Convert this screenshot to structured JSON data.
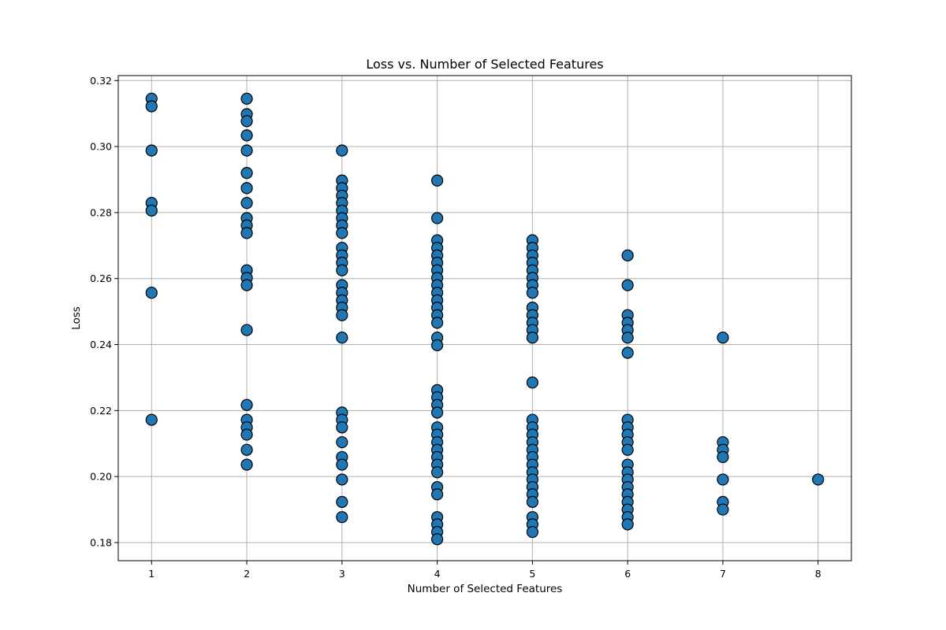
{
  "chart_data": {
    "type": "scatter",
    "title": "Loss vs. Number of Selected Features",
    "xlabel": "Number of Selected Features",
    "ylabel": "Loss",
    "xlim": [
      0.65,
      8.35
    ],
    "ylim": [
      0.1745,
      0.3215
    ],
    "xticks": [
      1,
      2,
      3,
      4,
      5,
      6,
      7,
      8
    ],
    "yticks": [
      0.18,
      0.2,
      0.22,
      0.24,
      0.26,
      0.28,
      0.3,
      0.32
    ],
    "ytick_labels": [
      "0.18",
      "0.20",
      "0.22",
      "0.24",
      "0.26",
      "0.28",
      "0.30",
      "0.32"
    ],
    "grid": true,
    "marker_color": "#1f77b4",
    "marker_edge_color": "#000000",
    "points": [
      {
        "x": 1,
        "y": 0.3145
      },
      {
        "x": 1,
        "y": 0.3122
      },
      {
        "x": 1,
        "y": 0.2988
      },
      {
        "x": 1,
        "y": 0.2829
      },
      {
        "x": 1,
        "y": 0.2806
      },
      {
        "x": 1,
        "y": 0.2557
      },
      {
        "x": 1,
        "y": 0.2172
      },
      {
        "x": 2,
        "y": 0.3145
      },
      {
        "x": 2,
        "y": 0.3098
      },
      {
        "x": 2,
        "y": 0.3077
      },
      {
        "x": 2,
        "y": 0.3034
      },
      {
        "x": 2,
        "y": 0.2988
      },
      {
        "x": 2,
        "y": 0.292
      },
      {
        "x": 2,
        "y": 0.2874
      },
      {
        "x": 2,
        "y": 0.2829
      },
      {
        "x": 2,
        "y": 0.2783
      },
      {
        "x": 2,
        "y": 0.2761
      },
      {
        "x": 2,
        "y": 0.2738
      },
      {
        "x": 2,
        "y": 0.2625
      },
      {
        "x": 2,
        "y": 0.2602
      },
      {
        "x": 2,
        "y": 0.258
      },
      {
        "x": 2,
        "y": 0.2444
      },
      {
        "x": 2,
        "y": 0.2217
      },
      {
        "x": 2,
        "y": 0.2172
      },
      {
        "x": 2,
        "y": 0.2149
      },
      {
        "x": 2,
        "y": 0.2127
      },
      {
        "x": 2,
        "y": 0.2081
      },
      {
        "x": 2,
        "y": 0.2036
      },
      {
        "x": 3,
        "y": 0.2988
      },
      {
        "x": 3,
        "y": 0.2897
      },
      {
        "x": 3,
        "y": 0.2874
      },
      {
        "x": 3,
        "y": 0.2851
      },
      {
        "x": 3,
        "y": 0.2829
      },
      {
        "x": 3,
        "y": 0.2806
      },
      {
        "x": 3,
        "y": 0.2783
      },
      {
        "x": 3,
        "y": 0.2761
      },
      {
        "x": 3,
        "y": 0.2738
      },
      {
        "x": 3,
        "y": 0.2693
      },
      {
        "x": 3,
        "y": 0.267
      },
      {
        "x": 3,
        "y": 0.2648
      },
      {
        "x": 3,
        "y": 0.2625
      },
      {
        "x": 3,
        "y": 0.258
      },
      {
        "x": 3,
        "y": 0.2557
      },
      {
        "x": 3,
        "y": 0.2534
      },
      {
        "x": 3,
        "y": 0.2512
      },
      {
        "x": 3,
        "y": 0.2489
      },
      {
        "x": 3,
        "y": 0.2421
      },
      {
        "x": 3,
        "y": 0.2194
      },
      {
        "x": 3,
        "y": 0.2172
      },
      {
        "x": 3,
        "y": 0.2149
      },
      {
        "x": 3,
        "y": 0.2104
      },
      {
        "x": 3,
        "y": 0.2059
      },
      {
        "x": 3,
        "y": 0.2036
      },
      {
        "x": 3,
        "y": 0.1991
      },
      {
        "x": 3,
        "y": 0.1923
      },
      {
        "x": 3,
        "y": 0.1877
      },
      {
        "x": 4,
        "y": 0.2897
      },
      {
        "x": 4,
        "y": 0.2783
      },
      {
        "x": 4,
        "y": 0.2716
      },
      {
        "x": 4,
        "y": 0.2693
      },
      {
        "x": 4,
        "y": 0.267
      },
      {
        "x": 4,
        "y": 0.2648
      },
      {
        "x": 4,
        "y": 0.2625
      },
      {
        "x": 4,
        "y": 0.2602
      },
      {
        "x": 4,
        "y": 0.258
      },
      {
        "x": 4,
        "y": 0.2557
      },
      {
        "x": 4,
        "y": 0.2534
      },
      {
        "x": 4,
        "y": 0.2512
      },
      {
        "x": 4,
        "y": 0.2489
      },
      {
        "x": 4,
        "y": 0.2466
      },
      {
        "x": 4,
        "y": 0.2421
      },
      {
        "x": 4,
        "y": 0.2398
      },
      {
        "x": 4,
        "y": 0.2262
      },
      {
        "x": 4,
        "y": 0.224
      },
      {
        "x": 4,
        "y": 0.2217
      },
      {
        "x": 4,
        "y": 0.2194
      },
      {
        "x": 4,
        "y": 0.2149
      },
      {
        "x": 4,
        "y": 0.2127
      },
      {
        "x": 4,
        "y": 0.2104
      },
      {
        "x": 4,
        "y": 0.2081
      },
      {
        "x": 4,
        "y": 0.2059
      },
      {
        "x": 4,
        "y": 0.2036
      },
      {
        "x": 4,
        "y": 0.2013
      },
      {
        "x": 4,
        "y": 0.1968
      },
      {
        "x": 4,
        "y": 0.1946
      },
      {
        "x": 4,
        "y": 0.1877
      },
      {
        "x": 4,
        "y": 0.1855
      },
      {
        "x": 4,
        "y": 0.1832
      },
      {
        "x": 4,
        "y": 0.181
      },
      {
        "x": 5,
        "y": 0.2716
      },
      {
        "x": 5,
        "y": 0.2693
      },
      {
        "x": 5,
        "y": 0.267
      },
      {
        "x": 5,
        "y": 0.2648
      },
      {
        "x": 5,
        "y": 0.2625
      },
      {
        "x": 5,
        "y": 0.2602
      },
      {
        "x": 5,
        "y": 0.258
      },
      {
        "x": 5,
        "y": 0.2557
      },
      {
        "x": 5,
        "y": 0.2512
      },
      {
        "x": 5,
        "y": 0.2489
      },
      {
        "x": 5,
        "y": 0.2466
      },
      {
        "x": 5,
        "y": 0.2444
      },
      {
        "x": 5,
        "y": 0.2421
      },
      {
        "x": 5,
        "y": 0.2285
      },
      {
        "x": 5,
        "y": 0.2172
      },
      {
        "x": 5,
        "y": 0.2149
      },
      {
        "x": 5,
        "y": 0.2127
      },
      {
        "x": 5,
        "y": 0.2104
      },
      {
        "x": 5,
        "y": 0.2081
      },
      {
        "x": 5,
        "y": 0.2059
      },
      {
        "x": 5,
        "y": 0.2036
      },
      {
        "x": 5,
        "y": 0.2013
      },
      {
        "x": 5,
        "y": 0.1991
      },
      {
        "x": 5,
        "y": 0.1968
      },
      {
        "x": 5,
        "y": 0.1946
      },
      {
        "x": 5,
        "y": 0.1923
      },
      {
        "x": 5,
        "y": 0.1877
      },
      {
        "x": 5,
        "y": 0.1855
      },
      {
        "x": 5,
        "y": 0.1832
      },
      {
        "x": 6,
        "y": 0.267
      },
      {
        "x": 6,
        "y": 0.258
      },
      {
        "x": 6,
        "y": 0.2489
      },
      {
        "x": 6,
        "y": 0.2466
      },
      {
        "x": 6,
        "y": 0.2444
      },
      {
        "x": 6,
        "y": 0.2421
      },
      {
        "x": 6,
        "y": 0.2375
      },
      {
        "x": 6,
        "y": 0.2172
      },
      {
        "x": 6,
        "y": 0.2149
      },
      {
        "x": 6,
        "y": 0.2127
      },
      {
        "x": 6,
        "y": 0.2104
      },
      {
        "x": 6,
        "y": 0.2081
      },
      {
        "x": 6,
        "y": 0.2036
      },
      {
        "x": 6,
        "y": 0.2013
      },
      {
        "x": 6,
        "y": 0.1991
      },
      {
        "x": 6,
        "y": 0.1968
      },
      {
        "x": 6,
        "y": 0.1946
      },
      {
        "x": 6,
        "y": 0.1923
      },
      {
        "x": 6,
        "y": 0.19
      },
      {
        "x": 6,
        "y": 0.1877
      },
      {
        "x": 6,
        "y": 0.1855
      },
      {
        "x": 7,
        "y": 0.2421
      },
      {
        "x": 7,
        "y": 0.2104
      },
      {
        "x": 7,
        "y": 0.2081
      },
      {
        "x": 7,
        "y": 0.2059
      },
      {
        "x": 7,
        "y": 0.1991
      },
      {
        "x": 7,
        "y": 0.1923
      },
      {
        "x": 7,
        "y": 0.19
      },
      {
        "x": 8,
        "y": 0.1991
      }
    ]
  }
}
